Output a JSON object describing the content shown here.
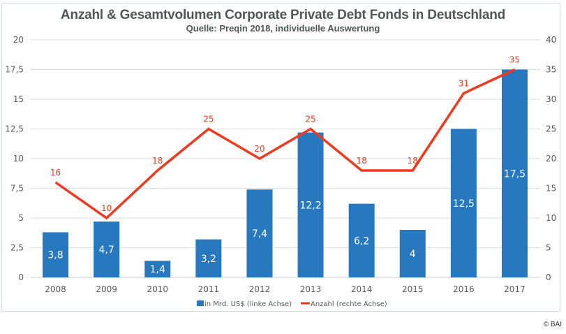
{
  "chart_data": {
    "type": "bar",
    "title": "Anzahl & Gesamtvolumen Corporate Private Debt Fonds in Deutschland",
    "subtitle": "Quelle: Preqin 2018, individuelle Auswertung",
    "categories": [
      "2008",
      "2009",
      "2010",
      "2011",
      "2012",
      "2013",
      "2014",
      "2015",
      "2016",
      "2017"
    ],
    "series": [
      {
        "name": "in Mrd. US$ (linke Achse)",
        "type": "bar",
        "axis": "left",
        "color": "#2878c0",
        "values": [
          3.8,
          4.7,
          1.4,
          3.2,
          7.4,
          12.2,
          6.2,
          4.0,
          12.5,
          17.5
        ],
        "labels": [
          "3,8",
          "4,7",
          "1,4",
          "3,2",
          "7,4",
          "12,2",
          "6,2",
          "4",
          "12,5",
          "17,5"
        ]
      },
      {
        "name": "Anzahl (rechte Achse)",
        "type": "line",
        "axis": "right",
        "color": "#f0391e",
        "values": [
          16,
          10,
          18,
          25,
          20,
          25,
          18,
          18,
          31,
          35
        ],
        "labels": [
          "16",
          "10",
          "18",
          "25",
          "20",
          "25",
          "18",
          "18",
          "31",
          "35"
        ]
      }
    ],
    "left_axis": {
      "ylim": [
        0,
        20
      ],
      "ticks": [
        "0",
        "2,5",
        "5",
        "7,5",
        "10",
        "12,5",
        "15",
        "17,5",
        "20"
      ]
    },
    "right_axis": {
      "ylim": [
        0,
        40
      ],
      "ticks": [
        "0",
        "5",
        "10",
        "15",
        "20",
        "25",
        "30",
        "35",
        "40"
      ]
    },
    "xlabel": "",
    "ylabel": "",
    "grid": true,
    "legend_position": "bottom-center"
  },
  "footer": {
    "copyright": "© BAI"
  }
}
